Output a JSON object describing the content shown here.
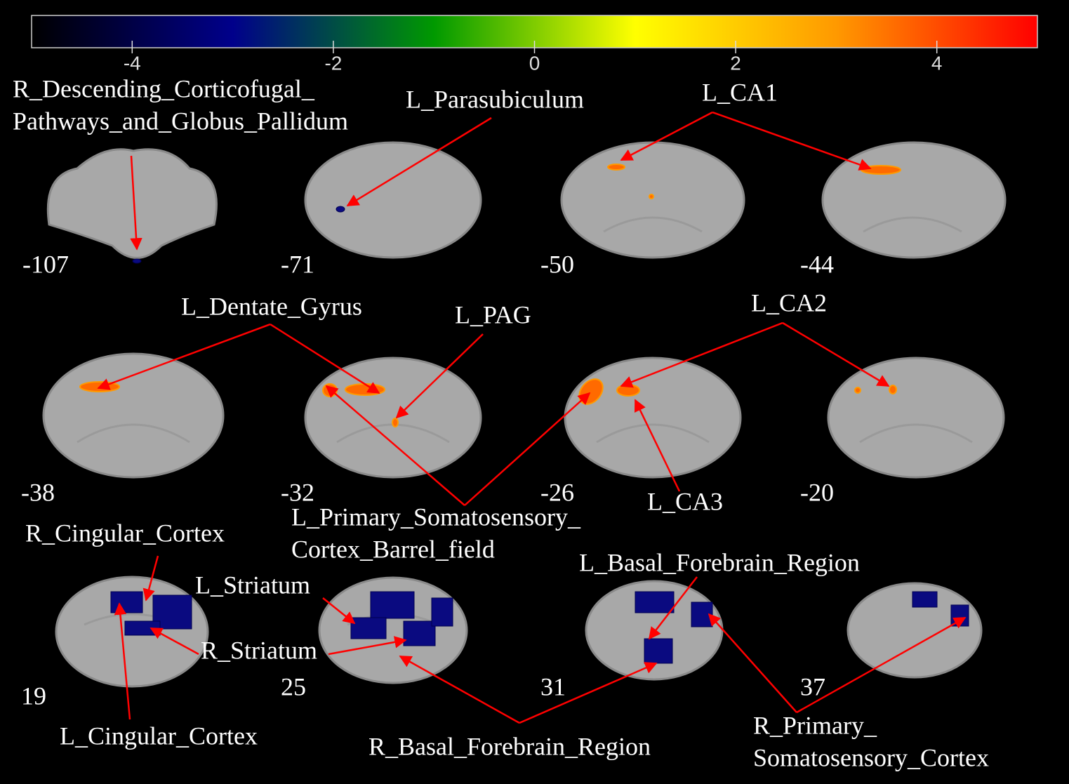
{
  "colorbar": {
    "range": [
      -5,
      5
    ],
    "ticks": [
      -4,
      -2,
      0,
      2,
      4
    ],
    "colors": [
      "#000000",
      "#00008b",
      "#009900",
      "#ffff00",
      "#ff9900",
      "#ff0000"
    ]
  },
  "slices": [
    {
      "label": "-107"
    },
    {
      "label": "-71"
    },
    {
      "label": "-50"
    },
    {
      "label": "-44"
    },
    {
      "label": "-38"
    },
    {
      "label": "-32"
    },
    {
      "label": "-26"
    },
    {
      "label": "-20"
    },
    {
      "label": "19"
    },
    {
      "label": "25"
    },
    {
      "label": "31"
    },
    {
      "label": "37"
    }
  ],
  "regions": [
    {
      "lines": [
        "R_Descending_Corticofugal_",
        "Pathways_and_Globus_Pallidum"
      ]
    },
    {
      "lines": [
        "L_Parasubiculum"
      ]
    },
    {
      "lines": [
        "L_CA1"
      ]
    },
    {
      "lines": [
        "L_Dentate_Gyrus"
      ]
    },
    {
      "lines": [
        "L_PAG"
      ]
    },
    {
      "lines": [
        "L_CA2"
      ]
    },
    {
      "lines": [
        "L_Primary_Somatosensory_",
        "Cortex_Barrel_field"
      ]
    },
    {
      "lines": [
        "L_CA3"
      ]
    },
    {
      "lines": [
        "R_Cingular_Cortex"
      ]
    },
    {
      "lines": [
        "L_Striatum"
      ]
    },
    {
      "lines": [
        "R_Striatum"
      ]
    },
    {
      "lines": [
        "L_Cingular_Cortex"
      ]
    },
    {
      "lines": [
        "L_Basal_Forebrain_Region"
      ]
    },
    {
      "lines": [
        "R_Basal_Forebrain_Region"
      ]
    },
    {
      "lines": [
        "R_Primary_",
        "Somatosensory_Cortex"
      ]
    }
  ]
}
